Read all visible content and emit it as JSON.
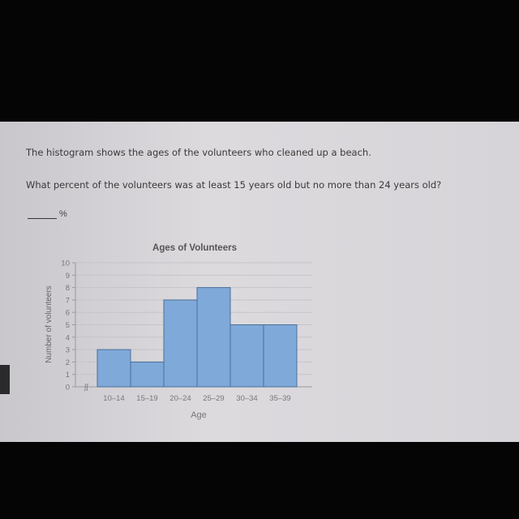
{
  "question": {
    "intro": "The histogram shows the ages of the volunteers who cleaned up a beach.",
    "prompt": "What percent of the volunteers was at least 15 years old but no more than 24 years old?",
    "answer_value": "",
    "answer_unit": "%"
  },
  "chart_data": {
    "type": "bar",
    "title": "Ages of Volunteers",
    "xlabel": "Age",
    "ylabel": "Number of volunteers",
    "categories": [
      "10–14",
      "15–19",
      "20–24",
      "25–29",
      "30–34",
      "35–39"
    ],
    "values": [
      3,
      2,
      7,
      8,
      5,
      5
    ],
    "ylim": [
      0,
      10
    ],
    "yticks": [
      "0",
      "1",
      "2",
      "3",
      "4",
      "5",
      "6",
      "7",
      "8",
      "9",
      "10"
    ],
    "grid": true,
    "axis_break": true,
    "bar_color": "#7fa9d9"
  }
}
